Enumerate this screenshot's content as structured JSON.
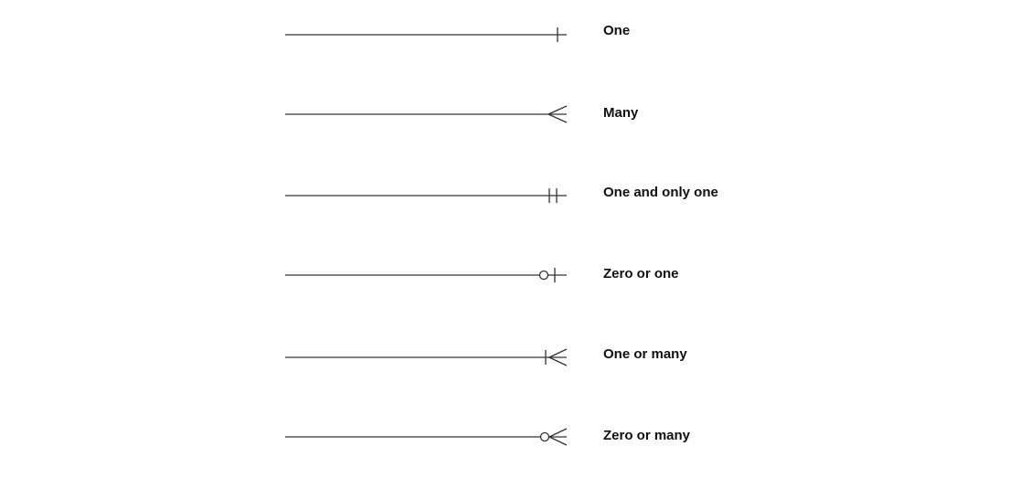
{
  "notations": [
    {
      "id": "one",
      "label": "One",
      "symbol": "one"
    },
    {
      "id": "many",
      "label": "Many",
      "symbol": "many"
    },
    {
      "id": "one-and-only-one",
      "label": "One and only one",
      "symbol": "one-and-only-one"
    },
    {
      "id": "zero-or-one",
      "label": "Zero or one",
      "symbol": "zero-or-one"
    },
    {
      "id": "one-or-many",
      "label": "One or many",
      "symbol": "one-or-many"
    },
    {
      "id": "zero-or-many",
      "label": "Zero or many",
      "symbol": "zero-or-many"
    }
  ],
  "colors": {
    "stroke": "#333333",
    "text": "#111111",
    "background": "#ffffff"
  }
}
